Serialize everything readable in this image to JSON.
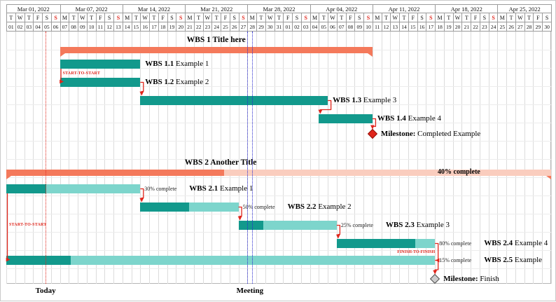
{
  "colors": {
    "teal": "#12998C",
    "teal_light": "#7DD5CC",
    "salmon": "#F4795B",
    "salmon_light": "#FACDBE",
    "red": "#E0251B",
    "red_dark": "#941109",
    "blue": "#2A2ACF",
    "ms_gray": "#CCCCCC",
    "ms_gray_border": "#4F4F4F",
    "grid_v": "#DCDCDC",
    "grid_h": "#ECECEC",
    "header_border": "#9B9B9B"
  },
  "chart_data": {
    "type": "gantt",
    "time_axis": {
      "start": "Mar 01, 2022",
      "end": "Apr 30, 2022",
      "weeks": [
        {
          "label": "Mar 01, 2022",
          "days": 6
        },
        {
          "label": "Mar 07, 2022",
          "days": 7
        },
        {
          "label": "Mar 14, 2022",
          "days": 7
        },
        {
          "label": "Mar 21, 2022",
          "days": 7
        },
        {
          "label": "Mar 28, 2022",
          "days": 7
        },
        {
          "label": "Apr 04, 2022",
          "days": 7
        },
        {
          "label": "Apr 11, 2022",
          "days": 7
        },
        {
          "label": "Apr 18, 2022",
          "days": 7
        },
        {
          "label": "Apr 25, 2022",
          "days": 6
        }
      ],
      "day_letters": [
        "T",
        "W",
        "T",
        "F",
        "S",
        "S",
        "M",
        "T",
        "W",
        "T",
        "F",
        "S",
        "S",
        "M",
        "T",
        "W",
        "T",
        "F",
        "S",
        "S",
        "M",
        "T",
        "W",
        "T",
        "F",
        "S",
        "S",
        "M",
        "T",
        "W",
        "T",
        "F",
        "S",
        "S",
        "M",
        "T",
        "W",
        "T",
        "F",
        "S",
        "S",
        "M",
        "T",
        "W",
        "T",
        "F",
        "S",
        "S",
        "M",
        "T",
        "W",
        "T",
        "F",
        "S",
        "S",
        "M",
        "T",
        "W",
        "T",
        "F",
        "S"
      ],
      "sunday_indices": [
        5,
        12,
        19,
        26,
        33,
        40,
        47,
        54
      ],
      "day_numbers": [
        "01",
        "02",
        "03",
        "04",
        "05",
        "06",
        "07",
        "08",
        "09",
        "10",
        "11",
        "12",
        "13",
        "14",
        "15",
        "16",
        "17",
        "18",
        "19",
        "20",
        "21",
        "22",
        "23",
        "24",
        "25",
        "26",
        "27",
        "28",
        "29",
        "30",
        "31",
        "01",
        "02",
        "03",
        "04",
        "05",
        "06",
        "07",
        "08",
        "09",
        "10",
        "11",
        "12",
        "13",
        "14",
        "15",
        "16",
        "17",
        "18",
        "19",
        "20",
        "21",
        "22",
        "23",
        "24",
        "25",
        "26",
        "27",
        "28",
        "29",
        "30"
      ]
    },
    "bars": [
      {
        "id": "g1",
        "row": 0,
        "type": "group",
        "start": 6,
        "end": 41,
        "progress": 100,
        "label_bold": "WBS 1",
        "label_rest": "Title here",
        "title_center_day": 23.5
      },
      {
        "id": "t11",
        "row": 1,
        "type": "task",
        "start": 6,
        "end": 15,
        "label_bold": "WBS 1.1",
        "label_rest": "Example 1"
      },
      {
        "id": "t12",
        "row": 2,
        "type": "task",
        "start": 6,
        "end": 15,
        "label_bold": "WBS 1.2",
        "label_rest": "Example 2"
      },
      {
        "id": "t13",
        "row": 3,
        "type": "task",
        "start": 15,
        "end": 36,
        "label_bold": "WBS 1.3",
        "label_rest": "Example 3"
      },
      {
        "id": "t14",
        "row": 4,
        "type": "task",
        "start": 35,
        "end": 41,
        "label_bold": "WBS 1.4",
        "label_rest": "Example 4"
      },
      {
        "id": "m1",
        "row": 5,
        "type": "milestone",
        "day": 41,
        "style": "red",
        "label_bold": "Milestone:",
        "label_rest": "Completed Example"
      },
      {
        "id": "g2",
        "row": 7,
        "type": "group",
        "start": 0,
        "end": 61,
        "progress": 40,
        "progress_label": "40% complete",
        "progress_label_day": 48.3,
        "label_bold": "WBS 2",
        "label_rest": "Another Title",
        "title_center_day": 24
      },
      {
        "id": "t21",
        "row": 8,
        "type": "task",
        "start": 0,
        "end": 15,
        "progress": 30,
        "progress_label": "30% complete",
        "label_bold": "WBS 2.1",
        "label_rest": "Example 1"
      },
      {
        "id": "t22",
        "row": 9,
        "type": "task",
        "start": 15,
        "end": 26,
        "progress": 50,
        "progress_label": "50% complete",
        "label_bold": "WBS 2.2",
        "label_rest": "Example 2"
      },
      {
        "id": "t23",
        "row": 10,
        "type": "task",
        "start": 26,
        "end": 37,
        "progress": 25,
        "progress_label": "25% complete",
        "label_bold": "WBS 2.3",
        "label_rest": "Example 3"
      },
      {
        "id": "t24",
        "row": 11,
        "type": "task",
        "start": 37,
        "end": 48,
        "progress": 80,
        "progress_label": "80% complete",
        "label_bold": "WBS 2.4",
        "label_rest": "Example 4"
      },
      {
        "id": "t25",
        "row": 12,
        "type": "task",
        "start": 0,
        "end": 48,
        "progress": 15,
        "progress_label": "15% complete",
        "label_bold": "WBS 2.5",
        "label_rest": "Example"
      },
      {
        "id": "m2",
        "row": 13,
        "type": "milestone",
        "day": 48,
        "style": "gray",
        "label_bold": "Milestone:",
        "label_rest": "Finish"
      }
    ],
    "links": [
      {
        "from": "t11",
        "to": "t12",
        "type": "ss",
        "label": "START-TO-START"
      },
      {
        "from": "t12",
        "to": "t13",
        "type": "fs"
      },
      {
        "from": "t13",
        "to": "t14",
        "type": "fs"
      },
      {
        "from": "t14",
        "to": "m1",
        "type": "fs"
      },
      {
        "from": "t21",
        "to": "t22",
        "type": "fs"
      },
      {
        "from": "t22",
        "to": "t23",
        "type": "fs"
      },
      {
        "from": "t23",
        "to": "t24",
        "type": "fs"
      },
      {
        "from": "t24",
        "to": "t25",
        "type": "ff",
        "label": "FINISH-TO-FINISH"
      },
      {
        "from": "t21",
        "to": "t25",
        "type": "ss",
        "label": "START-TO-START"
      },
      {
        "from": "t25",
        "to": "m2",
        "type": "fs"
      }
    ],
    "markers": {
      "today": {
        "label": "Today",
        "day": 4.4
      },
      "meeting": {
        "label": "Meeting",
        "days": [
          27,
          27.55
        ]
      }
    }
  }
}
